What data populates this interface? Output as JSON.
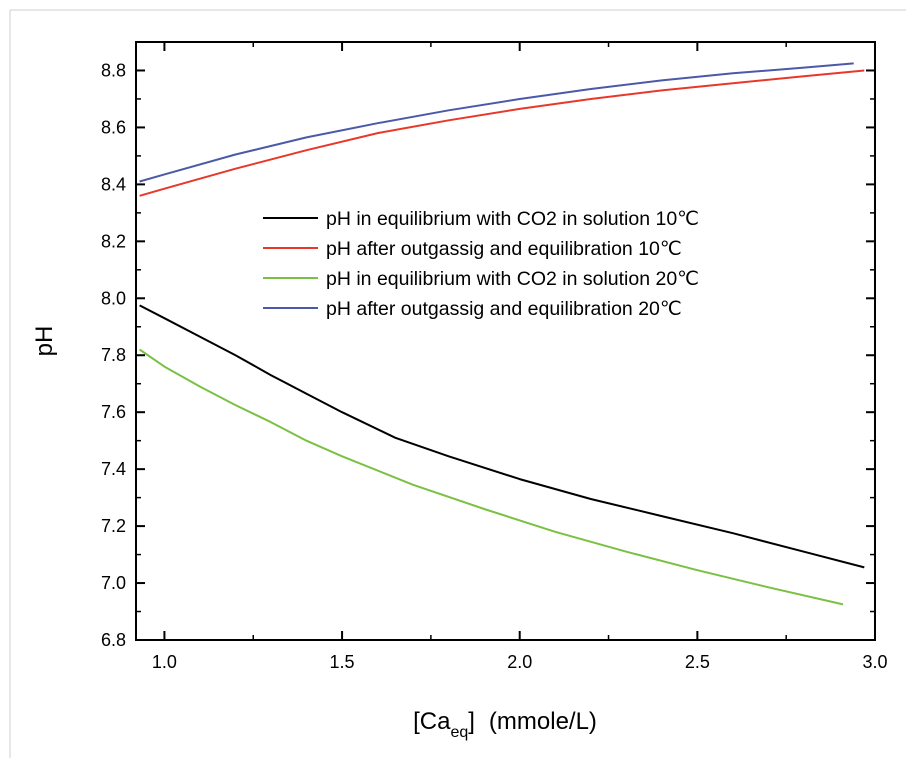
{
  "chart_data": {
    "type": "line",
    "xlabel": {
      "main": "[Ca",
      "sub": "eq",
      "close": "]",
      "unit": "(mmole/L)"
    },
    "ylabel": "pH",
    "xlim": [
      0.92,
      3.0
    ],
    "ylim": [
      6.8,
      8.9
    ],
    "xticks": [
      1.0,
      1.5,
      2.0,
      2.5,
      3.0
    ],
    "xtick_labels": [
      "1.0",
      "1.5",
      "2.0",
      "2.5",
      "3.0"
    ],
    "yticks": [
      6.8,
      7.0,
      7.2,
      7.4,
      7.6,
      7.8,
      8.0,
      8.2,
      8.4,
      8.6,
      8.8
    ],
    "ytick_labels": [
      "6.8",
      "7.0",
      "7.2",
      "7.4",
      "7.6",
      "7.8",
      "8.0",
      "8.2",
      "8.4",
      "8.6",
      "8.8"
    ],
    "grid": false,
    "legend_position": "center-right",
    "series": [
      {
        "name": "pH in equilibrium with CO2 in solution 10℃",
        "color": "#000000",
        "x": [
          0.93,
          1.0,
          1.1,
          1.2,
          1.3,
          1.4,
          1.5,
          1.65,
          1.8,
          2.0,
          2.2,
          2.4,
          2.6,
          2.8,
          2.97
        ],
        "y": [
          7.975,
          7.93,
          7.865,
          7.8,
          7.73,
          7.665,
          7.6,
          7.51,
          7.445,
          7.365,
          7.295,
          7.235,
          7.175,
          7.11,
          7.055
        ]
      },
      {
        "name": "pH after outgassig and equilibration 10℃",
        "color": "#e8382a",
        "x": [
          0.93,
          1.0,
          1.2,
          1.4,
          1.6,
          1.8,
          2.0,
          2.2,
          2.4,
          2.6,
          2.8,
          2.97
        ],
        "y": [
          8.36,
          8.385,
          8.455,
          8.52,
          8.58,
          8.625,
          8.665,
          8.7,
          8.73,
          8.755,
          8.78,
          8.8
        ]
      },
      {
        "name": "pH in equilibrium with CO2 in solution 20℃",
        "color": "#7ac143",
        "x": [
          0.93,
          1.0,
          1.1,
          1.2,
          1.3,
          1.4,
          1.5,
          1.7,
          1.9,
          2.1,
          2.3,
          2.5,
          2.7,
          2.91
        ],
        "y": [
          7.82,
          7.76,
          7.69,
          7.625,
          7.565,
          7.5,
          7.445,
          7.345,
          7.26,
          7.18,
          7.11,
          7.045,
          6.985,
          6.925
        ]
      },
      {
        "name": "pH after outgassig and equilibration 20℃",
        "color": "#4b5aa8",
        "x": [
          0.93,
          1.0,
          1.2,
          1.4,
          1.6,
          1.8,
          2.0,
          2.2,
          2.4,
          2.6,
          2.8,
          2.94
        ],
        "y": [
          8.41,
          8.435,
          8.505,
          8.565,
          8.615,
          8.66,
          8.7,
          8.735,
          8.765,
          8.79,
          8.81,
          8.825
        ]
      }
    ]
  }
}
